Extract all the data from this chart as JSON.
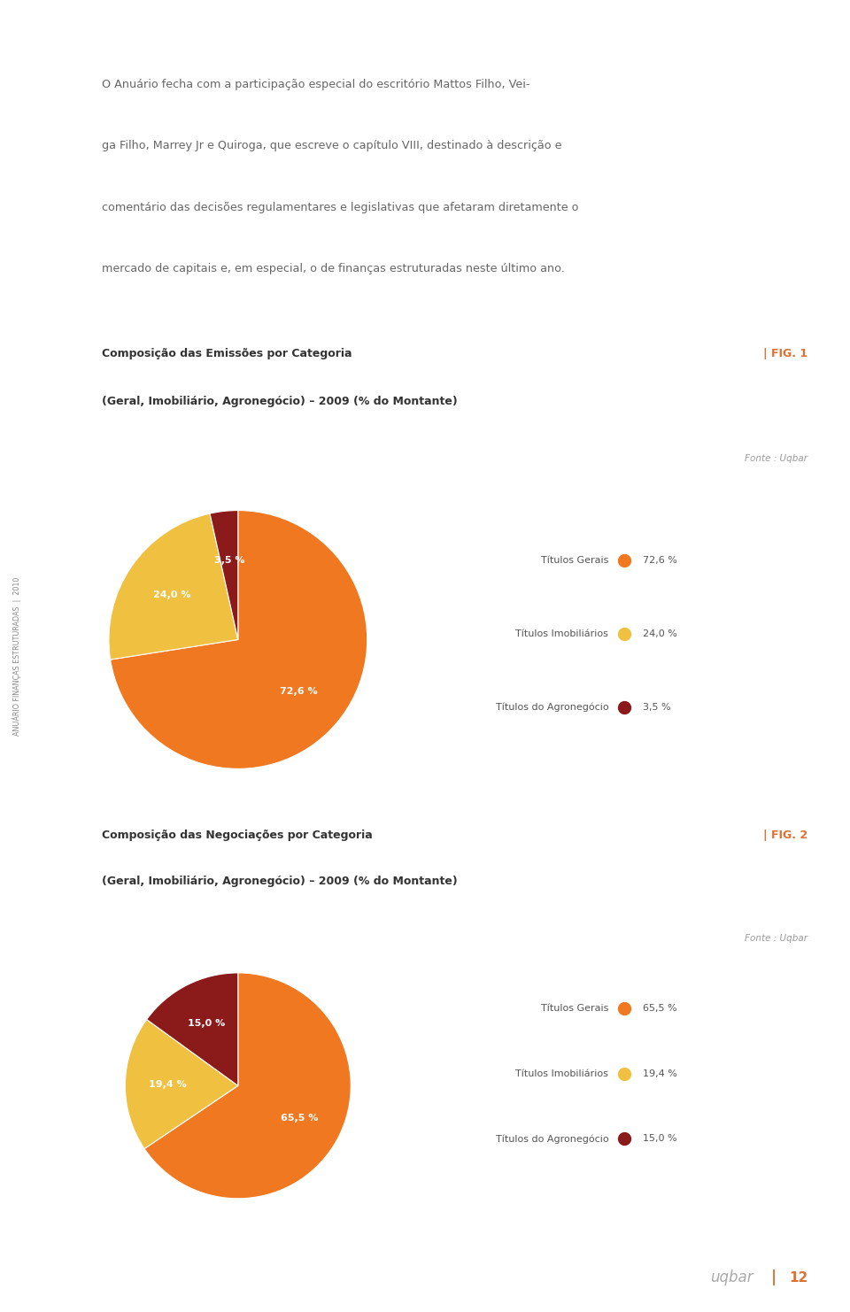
{
  "bg_color": "#ffffff",
  "page_width": 9.6,
  "page_height": 14.82,
  "sidebar_text": "ANUÁRIO FINANÇAS ESTRUTURADAS  |  2010",
  "body_text_lines": [
    "O Anuário fecha com a participação especial do escritório Mattos Filho, Vei-",
    "ga Filho, Marrey Jr e Quiroga, que escreve o capítulo VIII, destinado à descrição e",
    "comentário das decisões regulamentares e legislativas que afetaram diretamente o",
    "mercado de capitais e, em especial, o de finanças estruturadas neste último ano."
  ],
  "chart1": {
    "title_bold": "Composição das Emissões por Categoria",
    "title_sub": "(Geral, Imobiliário, Agronegócio) – 2009 (% do Montante)",
    "fig_label": "| FIG. 1",
    "source": "Fonte : Uqbar",
    "values": [
      72.6,
      24.0,
      3.5
    ],
    "colors": [
      "#f07820",
      "#f0c040",
      "#8b1a1a"
    ],
    "labels": [
      "72,6 %",
      "24,0 %",
      "3,5 %"
    ],
    "legend_labels": [
      "Títulos Gerais",
      "Títulos Imobiliários",
      "Títulos do Agronegócio"
    ],
    "legend_values": [
      "72,6 %",
      "24,0 %",
      "3,5 %"
    ]
  },
  "chart2": {
    "title_bold": "Composição das Negociações por Categoria",
    "title_sub": "(Geral, Imobiliário, Agronegócio) – 2009 (% do Montante)",
    "fig_label": "| FIG. 2",
    "source": "Fonte : Uqbar",
    "values": [
      65.5,
      19.4,
      15.0
    ],
    "colors": [
      "#f07820",
      "#f0c040",
      "#8b1a1a"
    ],
    "labels": [
      "65,5 %",
      "19,4 %",
      "15,0 %"
    ],
    "legend_labels": [
      "Títulos Gerais",
      "Títulos Imobiliários",
      "Títulos do Agronegócio"
    ],
    "legend_values": [
      "65,5 %",
      "19,4 %",
      "15,0 %"
    ]
  },
  "divider_color": "#c8603a",
  "title_color": "#333333",
  "text_color": "#666666",
  "fig_label_color": "#e07030",
  "source_color": "#999999",
  "legend_text_color": "#555555"
}
